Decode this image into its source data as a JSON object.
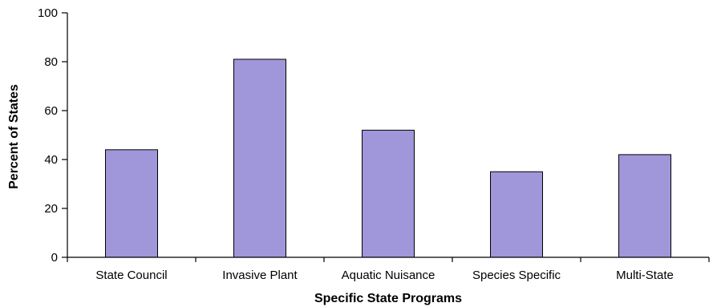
{
  "chart_data": {
    "type": "bar",
    "categories": [
      "State Council",
      "Invasive Plant",
      "Aquatic Nuisance",
      "Species Specific",
      "Multi-State"
    ],
    "values": [
      44,
      81,
      52,
      35,
      42
    ],
    "title": "",
    "xlabel": "Specific State Programs",
    "ylabel": "Percent of States",
    "ylim": [
      0,
      100
    ],
    "yticks": [
      0,
      20,
      40,
      60,
      80,
      100
    ],
    "grid": false,
    "legend": "none",
    "bar_color": "#9f97d9"
  }
}
